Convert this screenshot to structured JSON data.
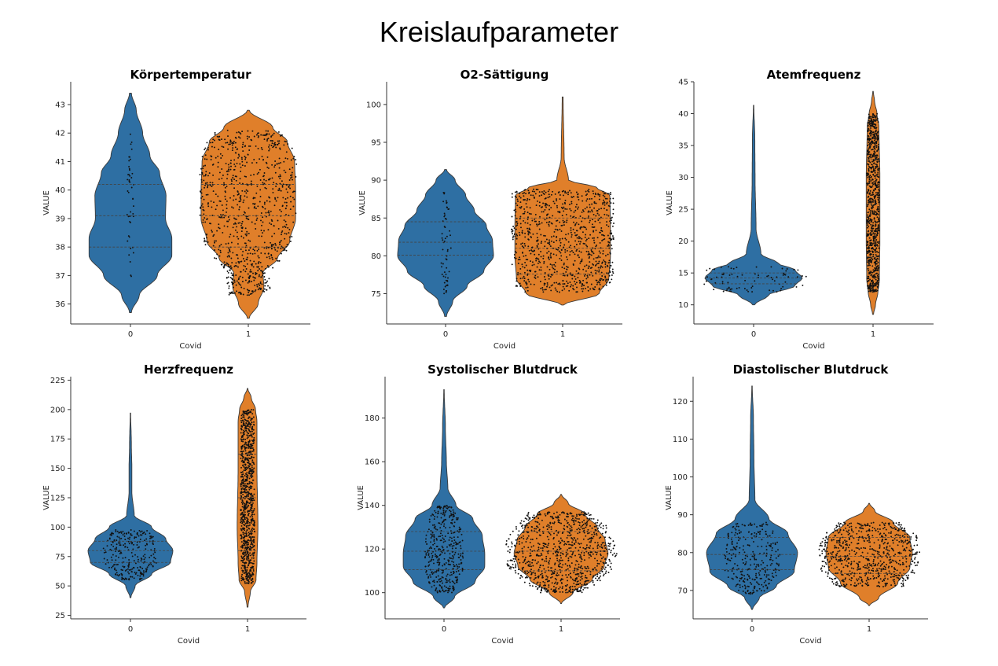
{
  "figure": {
    "title": "Kreislaufparameter",
    "colors": {
      "group0": "#2e6fa3",
      "group1": "#e07f2a",
      "dots": "#111111",
      "axis": "#333333"
    }
  },
  "chart_data": [
    {
      "type": "violin",
      "title": "Körpertemperatur",
      "xlabel": "Covid",
      "ylabel": "VALUE",
      "categories": [
        "0",
        "1"
      ],
      "ylim": [
        35.3,
        43.8
      ],
      "yticks": [
        36,
        37,
        38,
        39,
        40,
        41,
        42,
        43
      ],
      "series": [
        {
          "category": "0",
          "min": 35.7,
          "max": 43.4,
          "q1": 38.0,
          "median": 39.1,
          "q3": 40.2,
          "profile": [
            [
              35.7,
              0.02
            ],
            [
              36.3,
              0.18
            ],
            [
              37.0,
              0.55
            ],
            [
              37.7,
              0.85
            ],
            [
              38.3,
              0.85
            ],
            [
              39.0,
              0.72
            ],
            [
              39.8,
              0.73
            ],
            [
              40.6,
              0.6
            ],
            [
              41.2,
              0.4
            ],
            [
              42.0,
              0.25
            ],
            [
              42.8,
              0.12
            ],
            [
              43.4,
              0.02
            ]
          ],
          "dots": {
            "min": 36.9,
            "max": 42.1,
            "count": 45,
            "spread": 0.08
          }
        },
        {
          "category": "1",
          "min": 35.5,
          "max": 42.8,
          "q1": 38.0,
          "median": 39.1,
          "q3": 40.2,
          "profile": [
            [
              35.5,
              0.02
            ],
            [
              36.0,
              0.2
            ],
            [
              36.6,
              0.32
            ],
            [
              37.1,
              0.3
            ],
            [
              37.6,
              0.6
            ],
            [
              38.2,
              0.85
            ],
            [
              39.0,
              0.97
            ],
            [
              40.0,
              0.97
            ],
            [
              41.0,
              0.95
            ],
            [
              41.7,
              0.8
            ],
            [
              42.2,
              0.5
            ],
            [
              42.8,
              0.02
            ]
          ],
          "dots": {
            "min": 36.3,
            "max": 42.1,
            "count": 900,
            "spread": 0.8
          }
        }
      ]
    },
    {
      "type": "violin",
      "title": "O2-Sättigung",
      "xlabel": "Covid",
      "ylabel": "VALUE",
      "categories": [
        "0",
        "1"
      ],
      "ylim": [
        71.0,
        103.0
      ],
      "yticks": [
        75,
        80,
        85,
        90,
        95,
        100
      ],
      "series": [
        {
          "category": "0",
          "min": 72.0,
          "max": 91.4,
          "q1": 80.1,
          "median": 81.8,
          "q3": 84.5,
          "profile": [
            [
              72.0,
              0.02
            ],
            [
              74.0,
              0.15
            ],
            [
              76.0,
              0.45
            ],
            [
              78.0,
              0.8
            ],
            [
              80.0,
              1.0
            ],
            [
              82.0,
              0.98
            ],
            [
              84.0,
              0.85
            ],
            [
              86.0,
              0.6
            ],
            [
              88.0,
              0.42
            ],
            [
              90.0,
              0.2
            ],
            [
              91.4,
              0.02
            ]
          ],
          "dots": {
            "min": 75.0,
            "max": 88.5,
            "count": 60,
            "spread": 0.1
          }
        },
        {
          "category": "1",
          "min": 73.5,
          "max": 101.0,
          "q1": 77.6,
          "median": 81.0,
          "q3": 85.0,
          "profile": [
            [
              73.5,
              0.02
            ],
            [
              75.0,
              0.75
            ],
            [
              77.0,
              0.95
            ],
            [
              80.0,
              0.98
            ],
            [
              84.0,
              0.98
            ],
            [
              88.0,
              0.97
            ],
            [
              89.0,
              0.7
            ],
            [
              90.0,
              0.12
            ],
            [
              93.0,
              0.03
            ],
            [
              101.0,
              0.01
            ]
          ],
          "dots": {
            "min": 75.2,
            "max": 88.8,
            "count": 900,
            "spread": 0.85
          }
        }
      ]
    },
    {
      "type": "violin",
      "title": "Atemfrequenz",
      "xlabel": "Covid",
      "ylabel": "VALUE",
      "categories": [
        "0",
        "1"
      ],
      "ylim": [
        7.0,
        45.0
      ],
      "yticks": [
        10,
        15,
        20,
        25,
        30,
        35,
        40,
        45
      ],
      "series": [
        {
          "category": "0",
          "min": 10.0,
          "max": 41.3,
          "q1": 13.3,
          "median": 14.2,
          "q3": 15.0,
          "profile": [
            [
              10.0,
              0.02
            ],
            [
              11.5,
              0.3
            ],
            [
              13.0,
              0.85
            ],
            [
              14.2,
              1.0
            ],
            [
              15.5,
              0.85
            ],
            [
              16.5,
              0.5
            ],
            [
              18.0,
              0.15
            ],
            [
              22.0,
              0.05
            ],
            [
              30.0,
              0.03
            ],
            [
              36.0,
              0.025
            ],
            [
              41.3,
              0.005
            ]
          ],
          "dots": {
            "min": 12.0,
            "max": 16.0,
            "count": 80,
            "spread": 0.9
          }
        },
        {
          "category": "1",
          "min": 8.5,
          "max": 43.5,
          "q1": 17.5,
          "median": 25.8,
          "q3": 32.8,
          "profile": [
            [
              8.5,
              0.01
            ],
            [
              10.0,
              0.05
            ],
            [
              12.0,
              0.1
            ],
            [
              14.0,
              0.13
            ],
            [
              20.0,
              0.14
            ],
            [
              30.0,
              0.14
            ],
            [
              38.0,
              0.12
            ],
            [
              40.0,
              0.08
            ],
            [
              42.0,
              0.03
            ],
            [
              43.5,
              0.005
            ]
          ],
          "dots": {
            "min": 12.0,
            "max": 40.0,
            "count": 850,
            "spread": 0.5
          }
        }
      ]
    },
    {
      "type": "violin",
      "title": "Herzfrequenz",
      "xlabel": "Covid",
      "ylabel": "VALUE",
      "categories": [
        "0",
        "1"
      ],
      "ylim": [
        22.0,
        228.0
      ],
      "yticks": [
        25,
        50,
        75,
        100,
        125,
        150,
        175,
        200,
        225
      ],
      "series": [
        {
          "category": "0",
          "min": 40.0,
          "max": 197.0,
          "q1": 70.0,
          "median": 80.0,
          "q3": 88.0,
          "profile": [
            [
              40.0,
              0.01
            ],
            [
              50.0,
              0.1
            ],
            [
              60.0,
              0.45
            ],
            [
              70.0,
              0.85
            ],
            [
              80.0,
              0.9
            ],
            [
              90.0,
              0.75
            ],
            [
              100.0,
              0.45
            ],
            [
              110.0,
              0.08
            ],
            [
              130.0,
              0.03
            ],
            [
              150.0,
              0.03
            ],
            [
              170.0,
              0.02
            ],
            [
              197.0,
              0.005
            ]
          ],
          "dots": {
            "min": 55.0,
            "max": 98.0,
            "count": 260,
            "spread": 0.55
          }
        },
        {
          "category": "1",
          "min": 32.0,
          "max": 218.0,
          "q1": 80.0,
          "median": 125.0,
          "q3": 162.0,
          "profile": [
            [
              32.0,
              0.01
            ],
            [
              45.0,
              0.06
            ],
            [
              55.0,
              0.18
            ],
            [
              70.0,
              0.2
            ],
            [
              100.0,
              0.22
            ],
            [
              150.0,
              0.2
            ],
            [
              190.0,
              0.2
            ],
            [
              200.0,
              0.17
            ],
            [
              210.0,
              0.08
            ],
            [
              218.0,
              0.005
            ]
          ],
          "dots": {
            "min": 52.0,
            "max": 200.0,
            "count": 900,
            "spread": 0.45
          }
        }
      ]
    },
    {
      "type": "violin",
      "title": "Systolischer Blutdruck",
      "xlabel": "Covid",
      "ylabel": "VALUE",
      "categories": [
        "0",
        "1"
      ],
      "ylim": [
        88.0,
        199.0
      ],
      "yticks": [
        100,
        120,
        140,
        160,
        180
      ],
      "series": [
        {
          "category": "0",
          "min": 93.0,
          "max": 193.0,
          "q1": 110.5,
          "median": 119.0,
          "q3": 128.0,
          "profile": [
            [
              93.0,
              0.01
            ],
            [
              98.0,
              0.22
            ],
            [
              105.0,
              0.65
            ],
            [
              112.0,
              0.85
            ],
            [
              118.0,
              0.85
            ],
            [
              126.0,
              0.8
            ],
            [
              134.0,
              0.6
            ],
            [
              140.0,
              0.25
            ],
            [
              148.0,
              0.08
            ],
            [
              160.0,
              0.05
            ],
            [
              175.0,
              0.03
            ],
            [
              193.0,
              0.005
            ]
          ],
          "dots": {
            "min": 100.0,
            "max": 140.0,
            "count": 400,
            "spread": 0.4
          }
        },
        {
          "category": "1",
          "min": 95.0,
          "max": 145.0,
          "q1": 110.0,
          "median": 119.0,
          "q3": 128.0,
          "profile": [
            [
              95.0,
              0.01
            ],
            [
              100.0,
              0.25
            ],
            [
              106.0,
              0.65
            ],
            [
              112.0,
              0.9
            ],
            [
              118.0,
              0.98
            ],
            [
              124.0,
              0.92
            ],
            [
              130.0,
              0.75
            ],
            [
              136.0,
              0.5
            ],
            [
              141.0,
              0.15
            ],
            [
              145.0,
              0.01
            ]
          ],
          "dots": {
            "min": 100.0,
            "max": 137.0,
            "count": 900,
            "spread": 0.95
          }
        }
      ]
    },
    {
      "type": "violin",
      "title": "Diastolischer Blutdruck",
      "xlabel": "Covid",
      "ylabel": "VALUE",
      "categories": [
        "0",
        "1"
      ],
      "ylim": [
        62.5,
        126.5
      ],
      "yticks": [
        70,
        80,
        90,
        100,
        110,
        120
      ],
      "series": [
        {
          "category": "0",
          "min": 65.0,
          "max": 124.0,
          "q1": 75.5,
          "median": 79.5,
          "q3": 84.0,
          "profile": [
            [
              65.0,
              0.01
            ],
            [
              68.0,
              0.15
            ],
            [
              71.0,
              0.5
            ],
            [
              75.0,
              0.88
            ],
            [
              80.0,
              0.95
            ],
            [
              85.0,
              0.75
            ],
            [
              89.0,
              0.35
            ],
            [
              94.0,
              0.06
            ],
            [
              105.0,
              0.04
            ],
            [
              115.0,
              0.03
            ],
            [
              124.0,
              0.005
            ]
          ],
          "dots": {
            "min": 69.0,
            "max": 88.0,
            "count": 300,
            "spread": 0.55
          }
        },
        {
          "category": "1",
          "min": 66.0,
          "max": 93.0,
          "q1": 74.5,
          "median": 79.0,
          "q3": 84.0,
          "profile": [
            [
              66.0,
              0.01
            ],
            [
              68.0,
              0.2
            ],
            [
              72.0,
              0.6
            ],
            [
              76.0,
              0.85
            ],
            [
              80.0,
              0.9
            ],
            [
              84.0,
              0.85
            ],
            [
              88.0,
              0.5
            ],
            [
              91.0,
              0.12
            ],
            [
              93.0,
              0.01
            ]
          ],
          "dots": {
            "min": 71.0,
            "max": 88.0,
            "count": 700,
            "spread": 0.9
          }
        }
      ]
    }
  ]
}
